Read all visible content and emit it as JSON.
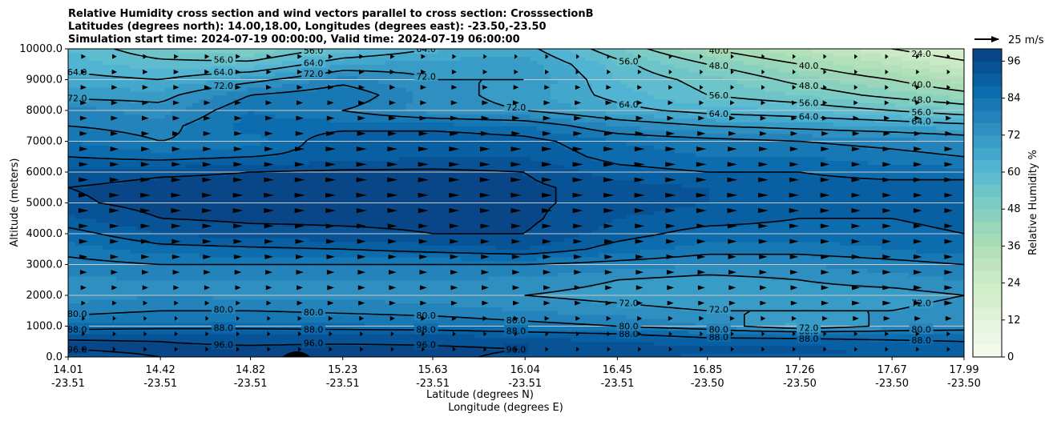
{
  "chart_data": {
    "type": "heatmap",
    "title_lines": [
      "Relative Humidity cross section and wind vectors parallel to cross section: CrosssectionB",
      "Latitudes (degrees north): 14.00,18.00, Longitudes (degrees east): -23.50,-23.50",
      "Simulation start time: 2024-07-19 00:00:00, Valid time: 2024-07-19 06:00:00"
    ],
    "ylabel": "Altitude (meters)",
    "xlabel_lat": "Latitude (degrees N)",
    "xlabel_lon": "Longitude (degrees E)",
    "y_ticks": [
      "0.0",
      "1000.0",
      "2000.0",
      "3000.0",
      "4000.0",
      "5000.0",
      "6000.0",
      "7000.0",
      "8000.0",
      "9000.0",
      "10000.0"
    ],
    "ylim": [
      0,
      10000
    ],
    "x_ticks": [
      {
        "lat": "14.01",
        "lon": "-23.51"
      },
      {
        "lat": "14.42",
        "lon": "-23.51"
      },
      {
        "lat": "14.82",
        "lon": "-23.51"
      },
      {
        "lat": "15.23",
        "lon": "-23.51"
      },
      {
        "lat": "15.63",
        "lon": "-23.51"
      },
      {
        "lat": "16.04",
        "lon": "-23.51"
      },
      {
        "lat": "16.45",
        "lon": "-23.51"
      },
      {
        "lat": "16.85",
        "lon": "-23.50"
      },
      {
        "lat": "17.26",
        "lon": "-23.50"
      },
      {
        "lat": "17.67",
        "lon": "-23.50"
      },
      {
        "lat": "17.99",
        "lon": "-23.50"
      }
    ],
    "colorbar_label": "Relative Humidity %",
    "colorbar_ticks": [
      "0",
      "12",
      "24",
      "36",
      "48",
      "60",
      "72",
      "84",
      "96"
    ],
    "colorbar_range": [
      0,
      100
    ],
    "colormap": [
      "#f7fcf0",
      "#e0f3db",
      "#ccebc5",
      "#a8ddb5",
      "#7bccc4",
      "#4eb3d3",
      "#2b8cbe",
      "#0868ac",
      "#084081"
    ],
    "grid": "horizontal",
    "quiver_key": "25 m/s",
    "contour_labels": [
      "96.0",
      "88.0",
      "80.0",
      "72.0",
      "64.0",
      "56.0",
      "48.0",
      "40.0",
      "24.0"
    ],
    "heights_m": [
      0,
      250,
      500,
      750,
      1000,
      1500,
      2000,
      2500,
      3000,
      3500,
      4000,
      4500,
      5000,
      5500,
      6000,
      6500,
      7000,
      7500,
      8000,
      8500,
      9000,
      9500,
      10000
    ],
    "rh_columns": [
      {
        "lat": 14.01,
        "rh": [
          94,
          96,
          97,
          92,
          85,
          78,
          74,
          75,
          78,
          82,
          86,
          91,
          95,
          96,
          93,
          88,
          84,
          80,
          78,
          70,
          66,
          62,
          60
        ]
      },
      {
        "lat": 14.42,
        "rh": [
          96,
          97,
          96,
          92,
          86,
          80,
          76,
          76,
          80,
          86,
          92,
          96,
          98,
          98,
          95,
          86,
          80,
          78,
          74,
          70,
          64,
          58,
          52
        ]
      },
      {
        "lat": 14.82,
        "rh": [
          99,
          97,
          95,
          92,
          86,
          80,
          75,
          76,
          80,
          87,
          94,
          97,
          98,
          98,
          96,
          88,
          82,
          86,
          84,
          80,
          70,
          58,
          48
        ]
      },
      {
        "lat": 15.23,
        "rh": [
          99,
          98,
          95,
          92,
          85,
          79,
          75,
          76,
          80,
          88,
          95,
          97,
          98,
          98,
          97,
          90,
          92,
          86,
          80,
          84,
          78,
          68,
          58
        ]
      },
      {
        "lat": 15.63,
        "rh": [
          97,
          97,
          95,
          92,
          84,
          78,
          74,
          76,
          80,
          90,
          96,
          97,
          98,
          98,
          97,
          92,
          92,
          86,
          74,
          74,
          72,
          70,
          64
        ]
      },
      {
        "lat": 16.04,
        "rh": [
          95,
          96,
          94,
          90,
          82,
          76,
          72,
          75,
          80,
          92,
          96,
          97,
          97,
          97,
          96,
          92,
          90,
          84,
          72,
          70,
          72,
          70,
          66
        ]
      },
      {
        "lat": 16.45,
        "rh": [
          92,
          95,
          92,
          88,
          80,
          74,
          70,
          72,
          78,
          86,
          90,
          92,
          94,
          94,
          90,
          86,
          84,
          76,
          66,
          62,
          60,
          58,
          52
        ]
      },
      {
        "lat": 16.85,
        "rh": [
          91,
          94,
          90,
          86,
          76,
          72,
          68,
          70,
          76,
          82,
          86,
          90,
          92,
          92,
          88,
          84,
          82,
          72,
          62,
          56,
          54,
          48,
          40
        ]
      },
      {
        "lat": 17.26,
        "rh": [
          91,
          93,
          90,
          85,
          66,
          72,
          70,
          72,
          76,
          82,
          86,
          88,
          90,
          90,
          88,
          84,
          80,
          70,
          60,
          52,
          46,
          40,
          32
        ]
      },
      {
        "lat": 17.67,
        "rh": [
          90,
          92,
          89,
          84,
          74,
          72,
          70,
          74,
          78,
          84,
          86,
          88,
          90,
          90,
          86,
          82,
          78,
          68,
          56,
          46,
          40,
          32,
          24
        ]
      },
      {
        "lat": 17.99,
        "rh": [
          90,
          91,
          88,
          84,
          76,
          74,
          72,
          76,
          80,
          86,
          88,
          90,
          92,
          90,
          86,
          80,
          76,
          66,
          52,
          42,
          34,
          26,
          18
        ]
      }
    ],
    "wind_u_ms": [
      [
        0,
        0,
        0,
        0,
        0,
        0,
        0,
        0,
        0,
        0,
        0
      ],
      [
        2,
        2,
        2,
        3,
        3,
        3,
        3,
        3,
        3,
        4,
        4
      ],
      [
        4,
        4,
        4,
        4,
        4,
        4,
        4,
        4,
        4,
        4,
        4
      ],
      [
        5,
        5,
        5,
        5,
        5,
        5,
        5,
        5,
        5,
        4,
        4
      ],
      [
        4,
        4,
        4,
        5,
        5,
        5,
        5,
        5,
        4,
        4,
        4
      ],
      [
        3,
        3,
        3,
        3,
        3,
        3,
        3,
        2,
        2,
        2,
        2
      ],
      [
        2,
        2,
        2,
        2,
        2,
        1,
        1,
        1,
        1,
        1,
        1
      ]
    ]
  }
}
